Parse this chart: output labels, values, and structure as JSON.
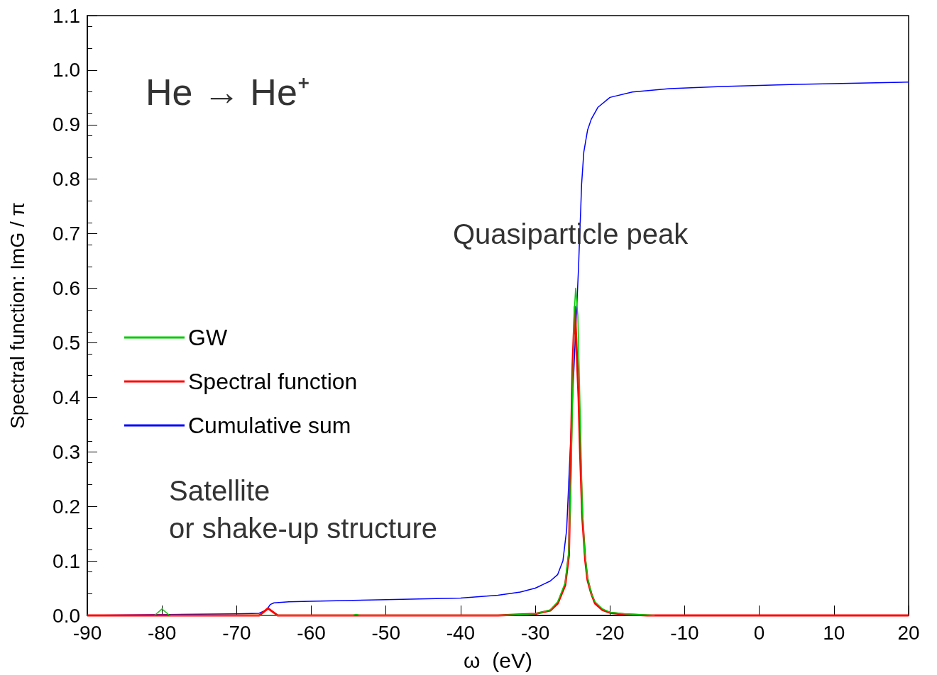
{
  "chart_data": {
    "type": "line",
    "xlabel": "ω  (eV)",
    "ylabel": "Spectral function: ImG / π",
    "annotations": [
      "He → He⁺",
      "Quasiparticle peak",
      "Satellite\nor shake-up structure"
    ],
    "xlim": [
      -90,
      20
    ],
    "xticks": [
      -90,
      -80,
      -70,
      -60,
      -50,
      -40,
      -30,
      -20,
      -10,
      0,
      10,
      20
    ],
    "ylim": [
      0,
      1.1
    ],
    "yticks": [
      {
        "value": 0,
        "label": "0.0"
      },
      0.1,
      0.2,
      0.3,
      0.4,
      0.5,
      0.6,
      0.7,
      0.8,
      0.9,
      {
        "value": 1,
        "label": "1.0"
      },
      1.1
    ],
    "grid": false,
    "legend": "left",
    "marker": "none",
    "line_style": "solid",
    "series": [
      {
        "name": "GW",
        "color": "#00cc00",
        "x": [
          -81,
          -80,
          -79,
          -54.5,
          -54,
          -53.5,
          -35,
          -30,
          -28,
          -27,
          -26,
          -25.5,
          -25.2,
          -25,
          -24.8,
          -24.6,
          -24.3,
          -24,
          -23.7,
          -23.4,
          -23,
          -22.5,
          -22,
          -21,
          -20,
          -18,
          -15,
          -14
        ],
        "values": [
          0,
          0.012,
          0,
          0,
          0.002,
          0,
          0,
          0.003,
          0.01,
          0.025,
          0.06,
          0.12,
          0.25,
          0.4,
          0.55,
          0.6,
          0.55,
          0.38,
          0.2,
          0.12,
          0.07,
          0.04,
          0.025,
          0.012,
          0.006,
          0.003,
          0.001,
          0
        ]
      },
      {
        "name": "Spectral function",
        "color": "#ff0000",
        "x": [
          -90,
          -67,
          -66.5,
          -65.8,
          -65,
          -64.5,
          -35,
          -30,
          -28,
          -27,
          -26,
          -25.5,
          -25.3,
          -25,
          -24.8,
          -24.7,
          -24.5,
          -24.2,
          -24,
          -23.7,
          -23.3,
          -23,
          -22.5,
          -22,
          -21,
          -20,
          -18,
          -15,
          20
        ],
        "values": [
          0,
          0,
          0.005,
          0.013,
          0.005,
          0,
          0,
          0.003,
          0.009,
          0.022,
          0.055,
          0.11,
          0.25,
          0.46,
          0.53,
          0.566,
          0.5,
          0.4,
          0.3,
          0.18,
          0.1,
          0.065,
          0.04,
          0.022,
          0.01,
          0.005,
          0.002,
          0,
          0
        ]
      },
      {
        "name": "Cumulative sum",
        "color": "#0000ff",
        "x": [
          -90,
          -70,
          -67,
          -66,
          -65.5,
          -65,
          -63,
          -60,
          -50,
          -40,
          -35,
          -32,
          -30,
          -28,
          -27,
          -26.3,
          -25.8,
          -25.5,
          -25,
          -24.5,
          -24.2,
          -24.1,
          -23.9,
          -23.8,
          -23.5,
          -23,
          -22.5,
          -21.6,
          -20,
          -17,
          -12,
          -5,
          5,
          20
        ],
        "values": [
          0,
          0.003,
          0.004,
          0.01,
          0.02,
          0.023,
          0.025,
          0.026,
          0.029,
          0.032,
          0.037,
          0.043,
          0.05,
          0.063,
          0.075,
          0.1,
          0.157,
          0.25,
          0.4,
          0.55,
          0.64,
          0.68,
          0.75,
          0.79,
          0.85,
          0.89,
          0.91,
          0.932,
          0.95,
          0.96,
          0.966,
          0.97,
          0.974,
          0.978
        ]
      }
    ]
  }
}
